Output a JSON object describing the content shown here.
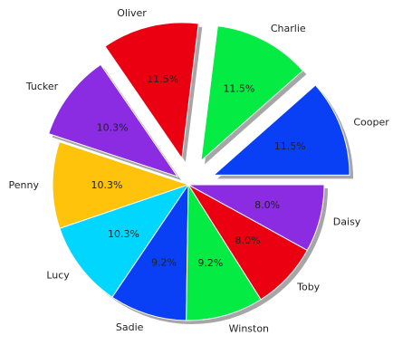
{
  "chart_data": {
    "type": "pie",
    "title": "",
    "start_angle": 0,
    "direction": "counterclockwise",
    "shadow": true,
    "slices": [
      {
        "label": "Cooper",
        "value": 11.5,
        "pct_text": "11.5%",
        "color": "#0a40f5",
        "explode": 0.2
      },
      {
        "label": "Charlie",
        "value": 11.5,
        "pct_text": "11.5%",
        "color": "#04ec43",
        "explode": 0.2
      },
      {
        "label": "Oliver",
        "value": 11.5,
        "pct_text": "11.5%",
        "color": "#ea0010",
        "explode": 0.2
      },
      {
        "label": "Tucker",
        "value": 10.3,
        "pct_text": "10.3%",
        "color": "#8b2be2",
        "explode": 0.1
      },
      {
        "label": "Penny",
        "value": 10.3,
        "pct_text": "10.3%",
        "color": "#fec30a",
        "explode": 0
      },
      {
        "label": "Lucy",
        "value": 10.3,
        "pct_text": "10.3%",
        "color": "#00d6fe",
        "explode": 0
      },
      {
        "label": "Sadie",
        "value": 9.2,
        "pct_text": "9.2%",
        "color": "#0a40f5",
        "explode": 0
      },
      {
        "label": "Winston",
        "value": 9.2,
        "pct_text": "9.2%",
        "color": "#04ec43",
        "explode": 0
      },
      {
        "label": "Toby",
        "value": 8.0,
        "pct_text": "8.0%",
        "color": "#ea0010",
        "explode": 0
      },
      {
        "label": "Daisy",
        "value": 8.0,
        "pct_text": "8.0%",
        "color": "#8b2be2",
        "explode": 0
      }
    ]
  }
}
